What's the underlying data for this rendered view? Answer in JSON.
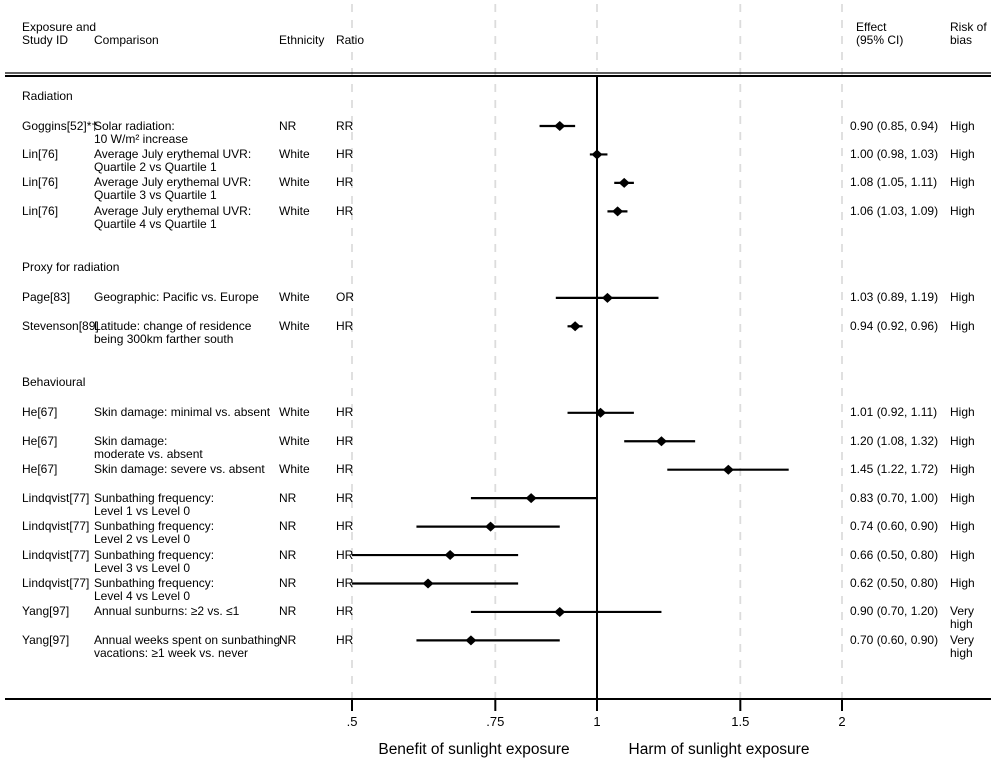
{
  "header": {
    "col_study": [
      "Exposure and",
      "Study ID"
    ],
    "col_comparison": "Comparison",
    "col_ethnicity": "Ethnicity",
    "col_ratio": "Ratio",
    "col_effect": [
      "Effect",
      "(95% CI)"
    ],
    "col_risk": [
      "Risk of",
      "bias"
    ]
  },
  "axis": {
    "ticks": [
      {
        "label": ".5",
        "value": 0.5
      },
      {
        "label": ".75",
        "value": 0.75
      },
      {
        "label": "1",
        "value": 1
      },
      {
        "label": "1.5",
        "value": 1.5
      },
      {
        "label": "2",
        "value": 2
      }
    ],
    "reference_value": 1,
    "benefit_label": "Benefit of sunlight exposure",
    "harm_label": "Harm of sunlight exposure"
  },
  "sections": [
    {
      "title": "Radiation",
      "rows": [
        {
          "study": "Goggins[52]*†",
          "comparison": [
            "Solar radiation:",
            "10 W/m² increase"
          ],
          "ethnicity": "NR",
          "ratio": "RR",
          "est": 0.9,
          "lo": 0.85,
          "hi": 0.94,
          "effect": "0.90 (0.85, 0.94)",
          "risk": [
            "High"
          ]
        },
        {
          "study": "Lin[76]",
          "comparison": [
            "Average July erythemal UVR:",
            "Quartile 2 vs Quartile 1"
          ],
          "ethnicity": "White",
          "ratio": "HR",
          "est": 1.0,
          "lo": 0.98,
          "hi": 1.03,
          "effect": "1.00 (0.98, 1.03)",
          "risk": [
            "High"
          ]
        },
        {
          "study": "Lin[76]",
          "comparison": [
            "Average July erythemal UVR:",
            "Quartile 3 vs Quartile 1"
          ],
          "ethnicity": "White",
          "ratio": "HR",
          "est": 1.08,
          "lo": 1.05,
          "hi": 1.11,
          "effect": "1.08 (1.05, 1.11)",
          "risk": [
            "High"
          ]
        },
        {
          "study": "Lin[76]",
          "comparison": [
            "Average July erythemal UVR:",
            "Quartile 4 vs Quartile 1"
          ],
          "ethnicity": "White",
          "ratio": "HR",
          "est": 1.06,
          "lo": 1.03,
          "hi": 1.09,
          "effect": "1.06 (1.03, 1.09)",
          "risk": [
            "High"
          ]
        }
      ]
    },
    {
      "title": "Proxy for radiation",
      "rows": [
        {
          "study": "Page[83]",
          "comparison": [
            "Geographic: Pacific vs. Europe"
          ],
          "ethnicity": "White",
          "ratio": "OR",
          "est": 1.03,
          "lo": 0.89,
          "hi": 1.19,
          "effect": "1.03 (0.89, 1.19)",
          "risk": [
            "High"
          ]
        },
        {
          "study": "Stevenson[89]",
          "comparison": [
            "Latitude: change of residence",
            "being 300km farther south"
          ],
          "ethnicity": "White",
          "ratio": "HR",
          "est": 0.94,
          "lo": 0.92,
          "hi": 0.96,
          "effect": "0.94 (0.92, 0.96)",
          "risk": [
            "High"
          ]
        }
      ]
    },
    {
      "title": "Behavioural",
      "rows": [
        {
          "study": "He[67]",
          "comparison": [
            "Skin damage: minimal vs. absent"
          ],
          "ethnicity": "White",
          "ratio": "HR",
          "est": 1.01,
          "lo": 0.92,
          "hi": 1.11,
          "effect": "1.01 (0.92, 1.11)",
          "risk": [
            "High"
          ]
        },
        {
          "study": "He[67]",
          "comparison": [
            "Skin damage:",
            "moderate vs. absent"
          ],
          "ethnicity": "White",
          "ratio": "HR",
          "est": 1.2,
          "lo": 1.08,
          "hi": 1.32,
          "effect": "1.20 (1.08, 1.32)",
          "risk": [
            "High"
          ]
        },
        {
          "study": "He[67]",
          "comparison": [
            "Skin damage: severe vs. absent"
          ],
          "ethnicity": "White",
          "ratio": "HR",
          "est": 1.45,
          "lo": 1.22,
          "hi": 1.72,
          "effect": "1.45 (1.22, 1.72)",
          "risk": [
            "High"
          ]
        },
        {
          "study": "Lindqvist[77]",
          "comparison": [
            "Sunbathing frequency:",
            "Level 1 vs Level 0"
          ],
          "ethnicity": "NR",
          "ratio": "HR",
          "est": 0.83,
          "lo": 0.7,
          "hi": 1.0,
          "effect": "0.83 (0.70, 1.00)",
          "risk": [
            "High"
          ]
        },
        {
          "study": "Lindqvist[77]",
          "comparison": [
            "Sunbathing frequency:",
            "Level 2 vs Level 0"
          ],
          "ethnicity": "NR",
          "ratio": "HR",
          "est": 0.74,
          "lo": 0.6,
          "hi": 0.9,
          "effect": "0.74 (0.60, 0.90)",
          "risk": [
            "High"
          ]
        },
        {
          "study": "Lindqvist[77]",
          "comparison": [
            "Sunbathing frequency:",
            "Level 3 vs Level 0"
          ],
          "ethnicity": "NR",
          "ratio": "HR",
          "est": 0.66,
          "lo": 0.5,
          "hi": 0.8,
          "effect": "0.66 (0.50, 0.80)",
          "risk": [
            "High"
          ]
        },
        {
          "study": "Lindqvist[77]",
          "comparison": [
            "Sunbathing frequency:",
            "Level 4 vs Level 0"
          ],
          "ethnicity": "NR",
          "ratio": "HR",
          "est": 0.62,
          "lo": 0.5,
          "hi": 0.8,
          "effect": "0.62 (0.50, 0.80)",
          "risk": [
            "High"
          ]
        },
        {
          "study": "Yang[97]",
          "comparison": [
            "Annual sunburns: ≥2 vs. ≤1"
          ],
          "ethnicity": "NR",
          "ratio": "HR",
          "est": 0.9,
          "lo": 0.7,
          "hi": 1.2,
          "effect": "0.90 (0.70, 1.20)",
          "risk": [
            "Very",
            "high"
          ]
        },
        {
          "study": "Yang[97]",
          "comparison": [
            "Annual weeks spent on sunbathing",
            "vacations: ≥1 week vs. never"
          ],
          "ethnicity": "NR",
          "ratio": "HR",
          "est": 0.7,
          "lo": 0.6,
          "hi": 0.9,
          "effect": "0.70 (0.60, 0.90)",
          "risk": [
            "Very",
            "high"
          ]
        }
      ]
    }
  ],
  "chart_data": {
    "type": "scatter",
    "subtype": "forest-plot",
    "x_scale": "log",
    "x_ticks": [
      0.5,
      0.75,
      1,
      1.5,
      2
    ],
    "x_tick_labels": [
      ".5",
      ".75",
      "1",
      "1.5",
      "2"
    ],
    "x_range": [
      0.42,
      2.95
    ],
    "reference_line": 1,
    "grid": "dashed-vertical-at-ticks",
    "xlabel_left_of_reference": "Benefit of sunlight exposure",
    "xlabel_right_of_reference": "Harm of sunlight exposure",
    "marker": "black-diamond-with-horizontal-ci-line",
    "groups": [
      {
        "name": "Radiation",
        "points": [
          {
            "study": "Goggins[52]*†",
            "comparison": "Solar radiation: 10 W/m² increase",
            "ratio_type": "RR",
            "estimate": 0.9,
            "ci": [
              0.85,
              0.94
            ],
            "risk_of_bias": "High"
          },
          {
            "study": "Lin[76]",
            "comparison": "Average July erythemal UVR: Quartile 2 vs Quartile 1",
            "ratio_type": "HR",
            "estimate": 1.0,
            "ci": [
              0.98,
              1.03
            ],
            "risk_of_bias": "High"
          },
          {
            "study": "Lin[76]",
            "comparison": "Average July erythemal UVR: Quartile 3 vs Quartile 1",
            "ratio_type": "HR",
            "estimate": 1.08,
            "ci": [
              1.05,
              1.11
            ],
            "risk_of_bias": "High"
          },
          {
            "study": "Lin[76]",
            "comparison": "Average July erythemal UVR: Quartile 4 vs Quartile 1",
            "ratio_type": "HR",
            "estimate": 1.06,
            "ci": [
              1.03,
              1.09
            ],
            "risk_of_bias": "High"
          }
        ]
      },
      {
        "name": "Proxy for radiation",
        "points": [
          {
            "study": "Page[83]",
            "comparison": "Geographic: Pacific vs. Europe",
            "ratio_type": "OR",
            "estimate": 1.03,
            "ci": [
              0.89,
              1.19
            ],
            "risk_of_bias": "High"
          },
          {
            "study": "Stevenson[89]",
            "comparison": "Latitude: change of residence being 300km farther south",
            "ratio_type": "HR",
            "estimate": 0.94,
            "ci": [
              0.92,
              0.96
            ],
            "risk_of_bias": "High"
          }
        ]
      },
      {
        "name": "Behavioural",
        "points": [
          {
            "study": "He[67]",
            "comparison": "Skin damage: minimal vs. absent",
            "ratio_type": "HR",
            "estimate": 1.01,
            "ci": [
              0.92,
              1.11
            ],
            "risk_of_bias": "High"
          },
          {
            "study": "He[67]",
            "comparison": "Skin damage: moderate vs. absent",
            "ratio_type": "HR",
            "estimate": 1.2,
            "ci": [
              1.08,
              1.32
            ],
            "risk_of_bias": "High"
          },
          {
            "study": "He[67]",
            "comparison": "Skin damage: severe vs. absent",
            "ratio_type": "HR",
            "estimate": 1.45,
            "ci": [
              1.22,
              1.72
            ],
            "risk_of_bias": "High"
          },
          {
            "study": "Lindqvist[77]",
            "comparison": "Sunbathing frequency: Level 1 vs Level 0",
            "ratio_type": "HR",
            "estimate": 0.83,
            "ci": [
              0.7,
              1.0
            ],
            "risk_of_bias": "High"
          },
          {
            "study": "Lindqvist[77]",
            "comparison": "Sunbathing frequency: Level 2 vs Level 0",
            "ratio_type": "HR",
            "estimate": 0.74,
            "ci": [
              0.6,
              0.9
            ],
            "risk_of_bias": "High"
          },
          {
            "study": "Lindqvist[77]",
            "comparison": "Sunbathing frequency: Level 3 vs Level 0",
            "ratio_type": "HR",
            "estimate": 0.66,
            "ci": [
              0.5,
              0.8
            ],
            "risk_of_bias": "High"
          },
          {
            "study": "Lindqvist[77]",
            "comparison": "Sunbathing frequency: Level 4 vs Level 0",
            "ratio_type": "HR",
            "estimate": 0.62,
            "ci": [
              0.5,
              0.8
            ],
            "risk_of_bias": "High"
          },
          {
            "study": "Yang[97]",
            "comparison": "Annual sunburns: ≥2 vs. ≤1",
            "ratio_type": "HR",
            "estimate": 0.9,
            "ci": [
              0.7,
              1.2
            ],
            "risk_of_bias": "Very high"
          },
          {
            "study": "Yang[97]",
            "comparison": "Annual weeks spent on sunbathing vacations: ≥1 week vs. never",
            "ratio_type": "HR",
            "estimate": 0.7,
            "ci": [
              0.6,
              0.9
            ],
            "risk_of_bias": "Very high"
          }
        ]
      }
    ]
  }
}
